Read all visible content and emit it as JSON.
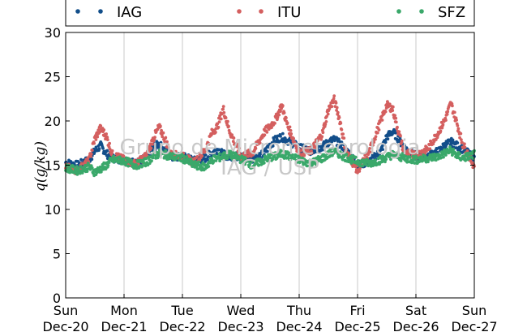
{
  "chart_data": {
    "type": "scatter",
    "ylabel": "q(g/kg)",
    "ylim": [
      0,
      30
    ],
    "yticks": [
      "0",
      "5",
      "10",
      "15",
      "20",
      "25",
      "30"
    ],
    "xlim": [
      "2015-12-20",
      "2015-12-27"
    ],
    "xticks": [
      {
        "day": "Sun",
        "date": "Dec-20"
      },
      {
        "day": "Mon",
        "date": "Dec-21"
      },
      {
        "day": "Tue",
        "date": "Dec-22"
      },
      {
        "day": "Wed",
        "date": "Dec-23"
      },
      {
        "day": "Thu",
        "date": "Dec-24"
      },
      {
        "day": "Fri",
        "date": "Dec-25"
      },
      {
        "day": "Sat",
        "date": "Dec-26"
      },
      {
        "day": "Sun",
        "date": "Dec-27"
      }
    ],
    "grid": "vertical",
    "legend_position": "top",
    "watermark": [
      "Grupo de Micrometeorologia",
      "IAG / USP"
    ],
    "series": [
      {
        "name": "IAG",
        "color": "#124e8a",
        "x": [
          0,
          0.2,
          0.4,
          0.5,
          0.6,
          0.7,
          0.8,
          1.0,
          1.2,
          1.4,
          1.5,
          1.6,
          1.7,
          1.8,
          2.0,
          2.2,
          2.4,
          2.5,
          2.6,
          2.7,
          2.8,
          3.0,
          3.2,
          3.4,
          3.5,
          3.6,
          3.7,
          3.8,
          4.0,
          4.2,
          4.4,
          4.5,
          4.6,
          4.7,
          4.8,
          5.0,
          5.2,
          5.4,
          5.5,
          5.6,
          5.7,
          5.8,
          6.0,
          6.2,
          6.4,
          6.5,
          6.6,
          6.7,
          6.8,
          7.0
        ],
        "y": [
          15.3,
          15.0,
          15.6,
          16.6,
          17.2,
          16.3,
          15.8,
          15.6,
          15.2,
          16.0,
          17.0,
          17.4,
          16.6,
          16.0,
          16.0,
          15.5,
          15.8,
          16.4,
          16.8,
          16.2,
          16.0,
          16.0,
          15.7,
          16.3,
          17.3,
          17.9,
          18.2,
          17.8,
          17.0,
          16.6,
          17.1,
          17.6,
          17.9,
          17.4,
          16.8,
          15.0,
          15.4,
          16.6,
          18.2,
          18.8,
          18.0,
          17.0,
          16.0,
          16.1,
          16.6,
          17.3,
          17.6,
          17.2,
          16.8,
          15.8
        ]
      },
      {
        "name": "ITU",
        "color": "#d45f5f",
        "x": [
          0,
          0.2,
          0.4,
          0.5,
          0.6,
          0.7,
          0.8,
          1.0,
          1.2,
          1.4,
          1.5,
          1.6,
          1.7,
          1.8,
          2.0,
          2.2,
          2.4,
          2.5,
          2.6,
          2.7,
          2.8,
          3.0,
          3.2,
          3.4,
          3.5,
          3.6,
          3.7,
          3.8,
          4.0,
          4.2,
          4.4,
          4.5,
          4.6,
          4.7,
          4.8,
          5.0,
          5.2,
          5.4,
          5.5,
          5.6,
          5.7,
          5.8,
          6.0,
          6.2,
          6.4,
          6.5,
          6.6,
          6.7,
          6.8,
          7.0
        ],
        "y": [
          14.8,
          14.4,
          15.5,
          18.0,
          19.2,
          18.2,
          16.2,
          15.6,
          15.1,
          16.2,
          18.0,
          19.3,
          18.0,
          16.2,
          16.0,
          15.3,
          16.8,
          18.6,
          19.4,
          21.4,
          19.0,
          16.0,
          16.4,
          18.7,
          19.4,
          20.2,
          21.8,
          19.5,
          16.4,
          16.6,
          18.6,
          21.3,
          22.4,
          20.0,
          16.6,
          14.4,
          16.5,
          20.0,
          21.8,
          21.4,
          18.8,
          16.4,
          16.2,
          16.8,
          18.9,
          20.2,
          22.0,
          19.8,
          17.4,
          14.9
        ]
      },
      {
        "name": "SFZ",
        "color": "#3aa86a",
        "x": [
          0,
          0.2,
          0.4,
          0.5,
          0.6,
          0.7,
          0.8,
          1.0,
          1.2,
          1.4,
          1.5,
          1.6,
          1.7,
          1.8,
          2.0,
          2.2,
          2.4,
          2.5,
          2.6,
          2.7,
          2.8,
          3.0,
          3.2,
          3.4,
          3.5,
          3.6,
          3.7,
          3.8,
          4.0,
          4.2,
          4.4,
          4.5,
          4.6,
          4.7,
          4.8,
          5.0,
          5.2,
          5.4,
          5.5,
          5.6,
          5.7,
          5.8,
          6.0,
          6.2,
          6.4,
          6.5,
          6.6,
          6.7,
          6.8,
          7.0
        ],
        "y": [
          14.7,
          14.4,
          14.8,
          14.2,
          14.6,
          15.0,
          15.6,
          15.5,
          15.0,
          15.4,
          16.0,
          16.3,
          16.2,
          16.0,
          15.8,
          15.0,
          14.8,
          15.6,
          15.8,
          16.0,
          16.2,
          15.7,
          15.0,
          15.6,
          15.9,
          16.0,
          16.3,
          16.1,
          15.6,
          15.2,
          15.8,
          16.2,
          16.6,
          16.2,
          15.9,
          15.4,
          15.2,
          15.6,
          15.9,
          16.2,
          16.0,
          15.8,
          15.6,
          15.8,
          16.0,
          16.4,
          16.7,
          16.1,
          15.8,
          16.2
        ]
      }
    ]
  }
}
